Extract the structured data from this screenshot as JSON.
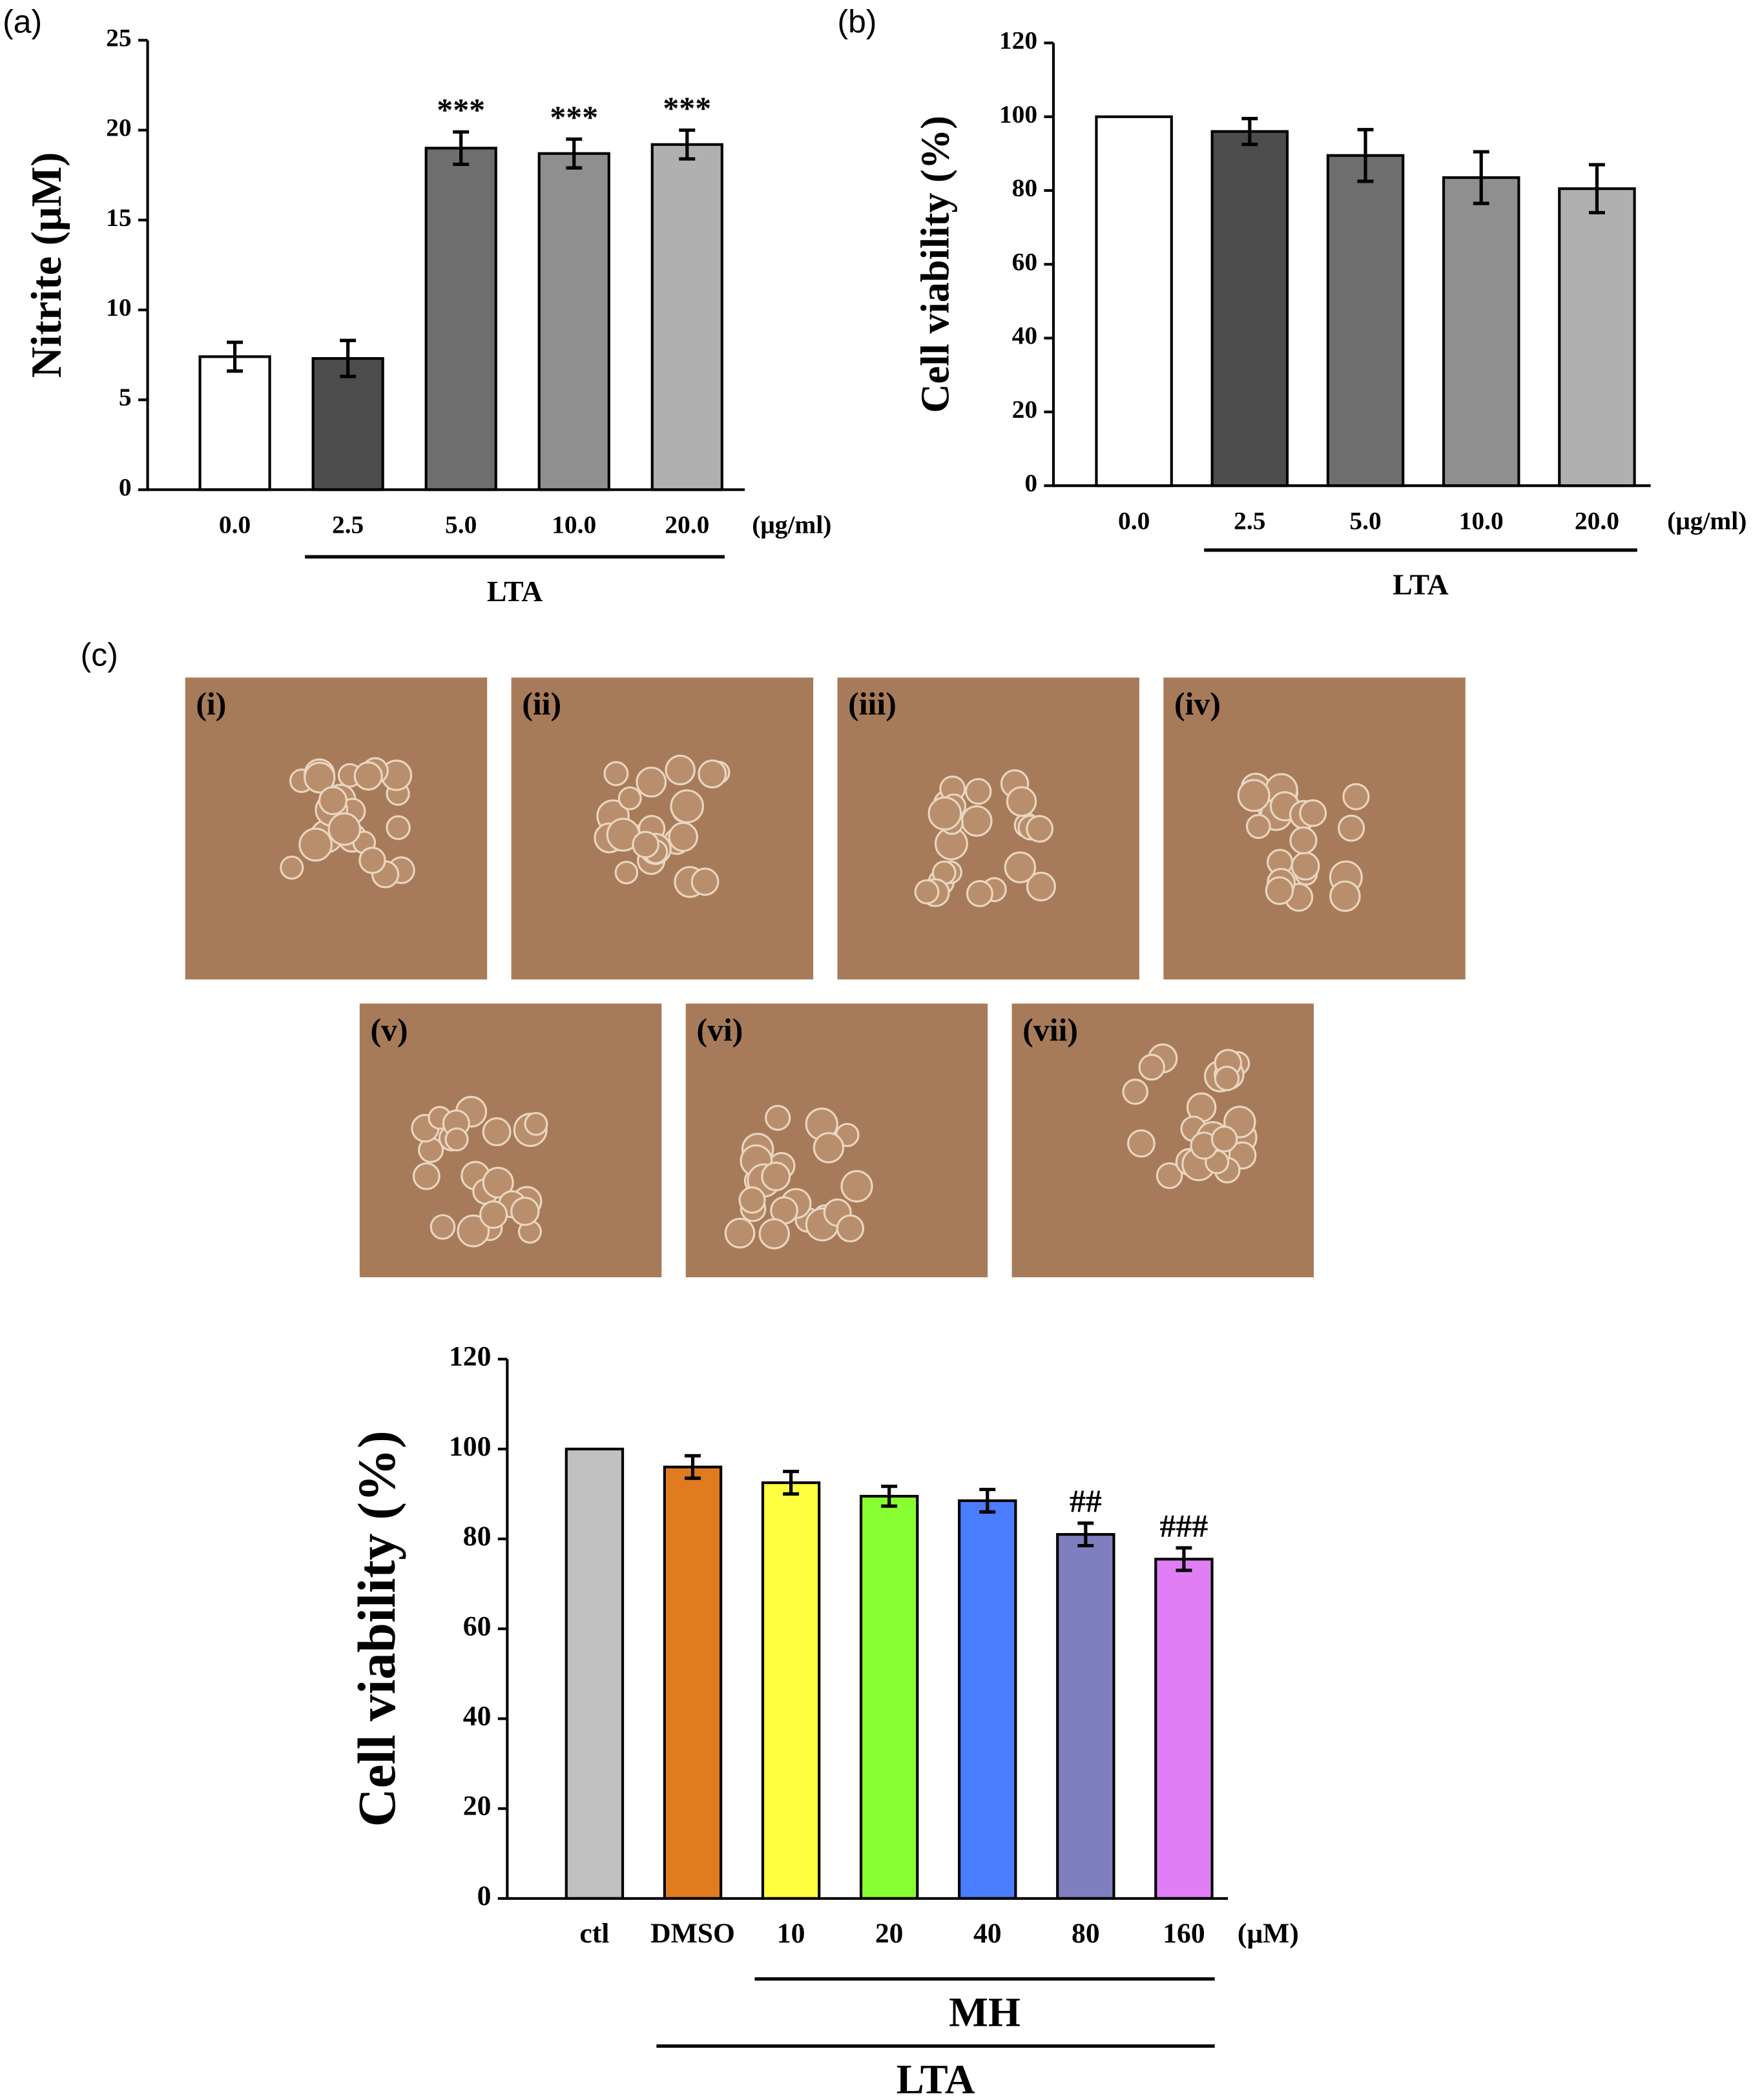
{
  "chart_data": [
    {
      "type": "bar",
      "panel_label": "(a)",
      "y_label": "Nitrite (μM)",
      "categories": [
        "0.0",
        "2.5",
        "5.0",
        "10.0",
        "20.0"
      ],
      "unit": "(μg/ml)",
      "values": [
        7.4,
        7.3,
        19.0,
        18.7,
        19.2
      ],
      "errors": [
        0.8,
        1.0,
        0.9,
        0.8,
        0.8
      ],
      "annotations": [
        null,
        null,
        "***",
        "***",
        "***"
      ],
      "colors": [
        "#ffffff",
        "#4d4d4d",
        "#6e6e6e",
        "#8f8f8f",
        "#b0b0b0"
      ],
      "groups": [
        {
          "label": "LTA",
          "categories": [
            "2.5",
            "5.0",
            "10.0",
            "20.0"
          ]
        }
      ],
      "ylim": [
        0,
        25
      ],
      "yticks": [
        0,
        5,
        10,
        15,
        20,
        25
      ]
    },
    {
      "type": "bar",
      "panel_label": "(b)",
      "y_label": "Cell viability (%)",
      "categories": [
        "0.0",
        "2.5",
        "5.0",
        "10.0",
        "20.0"
      ],
      "unit": "(μg/ml)",
      "values": [
        100,
        96,
        89.5,
        83.5,
        80.5
      ],
      "errors": [
        0,
        3.5,
        7,
        7,
        6.5
      ],
      "colors": [
        "#ffffff",
        "#4d4d4d",
        "#6e6e6e",
        "#8f8f8f",
        "#b0b0b0"
      ],
      "groups": [
        {
          "label": "LTA",
          "categories": [
            "2.5",
            "5.0",
            "10.0",
            "20.0"
          ]
        }
      ],
      "ylim": [
        0,
        120
      ],
      "yticks": [
        0,
        20,
        40,
        60,
        80,
        100,
        120
      ]
    },
    {
      "type": "bar",
      "y_label": "Cell viability (%)",
      "categories": [
        "ctl",
        "DMSO",
        "10",
        "20",
        "40",
        "80",
        "160"
      ],
      "unit": "(μM)",
      "values": [
        100,
        96,
        92.5,
        89.5,
        88.5,
        81,
        75.5
      ],
      "errors": [
        0,
        2.5,
        2.5,
        2.2,
        2.5,
        2.5,
        2.5
      ],
      "annotations": [
        null,
        null,
        null,
        null,
        null,
        "##",
        "###"
      ],
      "colors": [
        "#c0c0c0",
        "#e07b20",
        "#ffff40",
        "#88ff33",
        "#4a7dff",
        "#7f7fbf",
        "#e07ff5"
      ],
      "groups": [
        {
          "label": "MH",
          "categories": [
            "10",
            "20",
            "40",
            "80",
            "160"
          ]
        },
        {
          "label": "LTA",
          "categories": [
            "DMSO",
            "10",
            "20",
            "40",
            "80",
            "160"
          ]
        }
      ],
      "ylim": [
        0,
        120
      ],
      "yticks": [
        0,
        20,
        40,
        60,
        80,
        100,
        120
      ]
    }
  ],
  "micrographs": {
    "panel_label": "(c)",
    "labels": [
      "(i)",
      "(ii)",
      "(iii)",
      "(iv)",
      "(v)",
      "(vi)",
      "(vii)"
    ]
  }
}
